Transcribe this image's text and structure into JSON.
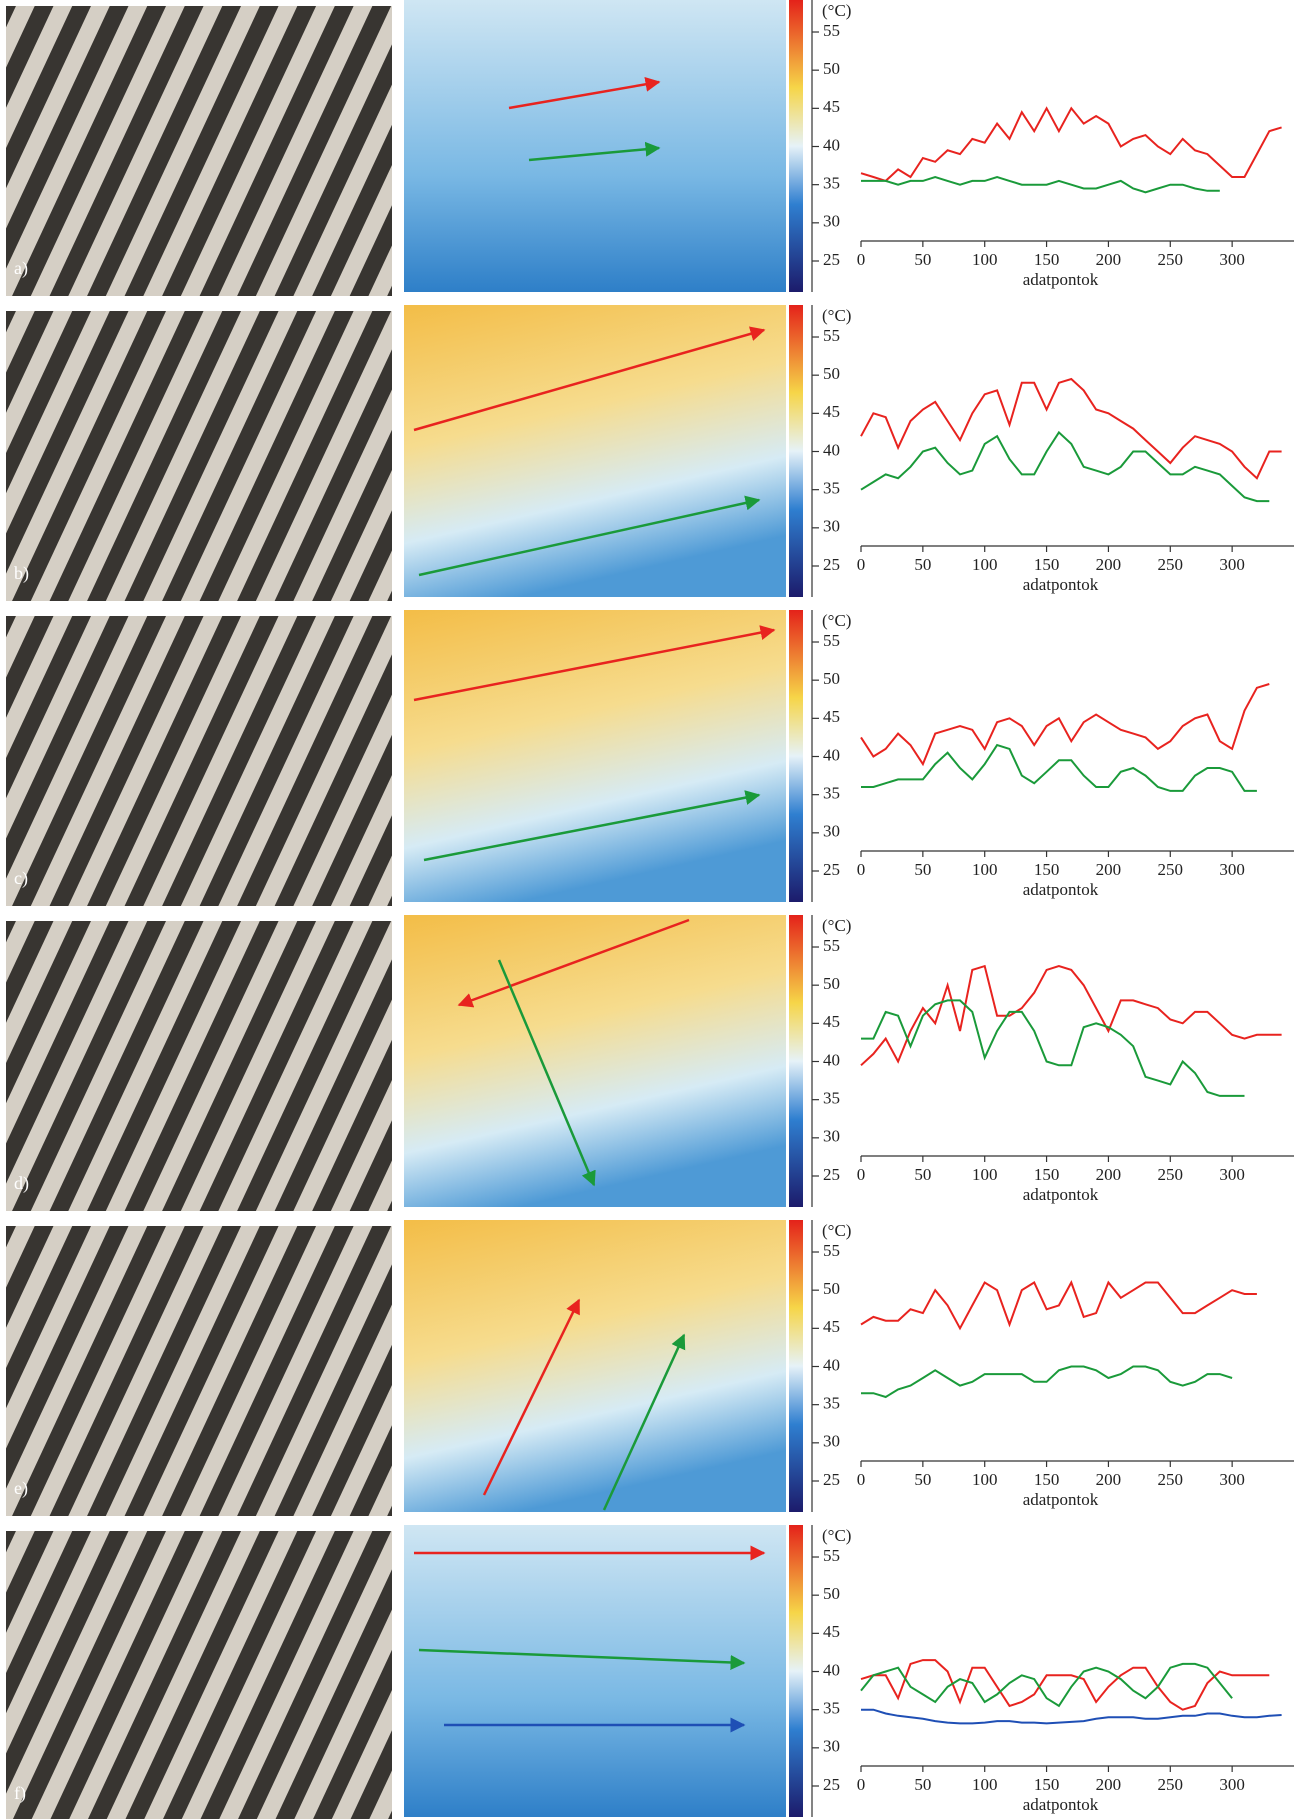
{
  "panel_labels": [
    "a)",
    "b)",
    "c)",
    "d)",
    "e)",
    "f)"
  ],
  "chart_data": [
    {
      "type": "line",
      "y_label": "(°C)",
      "x_label": "adatpontok",
      "xlim": [
        0,
        350
      ],
      "ylim": [
        25,
        58
      ],
      "xticks": [
        0,
        50,
        100,
        150,
        200,
        250,
        300
      ],
      "yticks": [
        25,
        30,
        35,
        40,
        45,
        50,
        55
      ],
      "x": [
        0,
        10,
        20,
        30,
        40,
        50,
        60,
        70,
        80,
        90,
        100,
        110,
        120,
        130,
        140,
        150,
        160,
        170,
        180,
        190,
        200,
        210,
        220,
        230,
        240,
        250,
        260,
        270,
        280,
        290,
        300,
        310,
        320,
        330,
        340
      ],
      "series": [
        {
          "color": "#e8231f",
          "values": [
            36.5,
            36,
            35.5,
            37,
            36,
            38.5,
            38,
            39.5,
            39,
            41,
            40.5,
            43,
            41,
            44.5,
            42,
            45,
            42,
            45,
            43,
            44,
            43,
            40,
            41,
            41.5,
            40,
            39,
            41,
            39.5,
            39,
            37.5,
            36,
            36,
            39,
            42,
            42.5
          ]
        },
        {
          "color": "#1a9a3a",
          "values": [
            35.5,
            35.5,
            35.5,
            35,
            35.5,
            35.5,
            36,
            35.5,
            35,
            35.5,
            35.5,
            36,
            35.5,
            35,
            35,
            35,
            35.5,
            35,
            34.5,
            34.5,
            35,
            35.5,
            34.5,
            34,
            34.5,
            35,
            35,
            34.5,
            34.2,
            34.2,
            null,
            null,
            null,
            null,
            null
          ]
        }
      ]
    },
    {
      "type": "line",
      "y_label": "(°C)",
      "x_label": "adatpontok",
      "xlim": [
        0,
        350
      ],
      "ylim": [
        25,
        58
      ],
      "xticks": [
        0,
        50,
        100,
        150,
        200,
        250,
        300
      ],
      "yticks": [
        25,
        30,
        35,
        40,
        45,
        50,
        55
      ],
      "x": [
        0,
        10,
        20,
        30,
        40,
        50,
        60,
        70,
        80,
        90,
        100,
        110,
        120,
        130,
        140,
        150,
        160,
        170,
        180,
        190,
        200,
        210,
        220,
        230,
        240,
        250,
        260,
        270,
        280,
        290,
        300,
        310,
        320,
        330,
        340
      ],
      "series": [
        {
          "color": "#e8231f",
          "values": [
            42,
            45,
            44.5,
            40.5,
            44,
            45.5,
            46.5,
            44,
            41.5,
            45,
            47.5,
            48,
            43.5,
            49,
            49,
            45.5,
            49,
            49.5,
            48,
            45.5,
            45,
            44,
            43,
            41.5,
            40,
            38.5,
            40.5,
            42,
            41.5,
            41,
            40,
            38,
            36.5,
            40,
            40
          ]
        },
        {
          "color": "#1a9a3a",
          "values": [
            35,
            36,
            37,
            36.5,
            38,
            40,
            40.5,
            38.5,
            37,
            37.5,
            41,
            42,
            39,
            37,
            37,
            40,
            42.5,
            41,
            38,
            37.5,
            37,
            38,
            40,
            40,
            38.5,
            37,
            37,
            38,
            37.5,
            37,
            35.5,
            34,
            33.5,
            33.5,
            null
          ]
        }
      ]
    },
    {
      "type": "line",
      "y_label": "(°C)",
      "x_label": "adatpontok",
      "xlim": [
        0,
        350
      ],
      "ylim": [
        25,
        58
      ],
      "xticks": [
        0,
        50,
        100,
        150,
        200,
        250,
        300
      ],
      "yticks": [
        25,
        30,
        35,
        40,
        45,
        50,
        55
      ],
      "x": [
        0,
        10,
        20,
        30,
        40,
        50,
        60,
        70,
        80,
        90,
        100,
        110,
        120,
        130,
        140,
        150,
        160,
        170,
        180,
        190,
        200,
        210,
        220,
        230,
        240,
        250,
        260,
        270,
        280,
        290,
        300,
        310,
        320,
        330,
        340
      ],
      "series": [
        {
          "color": "#e8231f",
          "values": [
            42.5,
            40,
            41,
            43,
            41.5,
            39,
            43,
            43.5,
            44,
            43.5,
            41,
            44.5,
            45,
            44,
            41.5,
            44,
            45,
            42,
            44.5,
            45.5,
            44.5,
            43.5,
            43,
            42.5,
            41,
            42,
            44,
            45,
            45.5,
            42,
            41,
            46,
            49,
            49.5,
            null
          ]
        },
        {
          "color": "#1a9a3a",
          "values": [
            36,
            36,
            36.5,
            37,
            37,
            37,
            39,
            40.5,
            38.5,
            37,
            39,
            41.5,
            41,
            37.5,
            36.5,
            38,
            39.5,
            39.5,
            37.5,
            36,
            36,
            38,
            38.5,
            37.5,
            36,
            35.5,
            35.5,
            37.5,
            38.5,
            38.5,
            38,
            35.5,
            35.5,
            null,
            null
          ]
        }
      ]
    },
    {
      "type": "line",
      "y_label": "(°C)",
      "x_label": "adatpontok",
      "xlim": [
        0,
        350
      ],
      "ylim": [
        25,
        58
      ],
      "xticks": [
        0,
        50,
        100,
        150,
        200,
        250,
        300
      ],
      "yticks": [
        25,
        30,
        35,
        40,
        45,
        50,
        55
      ],
      "x": [
        0,
        10,
        20,
        30,
        40,
        50,
        60,
        70,
        80,
        90,
        100,
        110,
        120,
        130,
        140,
        150,
        160,
        170,
        180,
        190,
        200,
        210,
        220,
        230,
        240,
        250,
        260,
        270,
        280,
        290,
        300,
        310,
        320,
        330,
        340
      ],
      "series": [
        {
          "color": "#e8231f",
          "values": [
            39.5,
            41,
            43,
            40,
            44,
            47,
            45,
            50,
            44,
            52,
            52.5,
            46,
            46,
            47,
            49,
            52,
            52.5,
            52,
            50,
            47,
            44,
            48,
            48,
            47.5,
            47,
            45.5,
            45,
            46.5,
            46.5,
            45,
            43.5,
            43,
            43.5,
            43.5,
            43.5
          ]
        },
        {
          "color": "#1a9a3a",
          "values": [
            43,
            43,
            46.5,
            46,
            42,
            46,
            47.5,
            48,
            48,
            46.5,
            40.5,
            44,
            46.5,
            46.5,
            44,
            40,
            39.5,
            39.5,
            44.5,
            45,
            44.5,
            43.5,
            42,
            38,
            37.5,
            37,
            40,
            38.5,
            36,
            35.5,
            35.5,
            35.5,
            null,
            null,
            null
          ]
        }
      ]
    },
    {
      "type": "line",
      "y_label": "(°C)",
      "x_label": "adatpontok",
      "xlim": [
        0,
        350
      ],
      "ylim": [
        25,
        58
      ],
      "xticks": [
        0,
        50,
        100,
        150,
        200,
        250,
        300
      ],
      "yticks": [
        25,
        30,
        35,
        40,
        45,
        50,
        55
      ],
      "x": [
        0,
        10,
        20,
        30,
        40,
        50,
        60,
        70,
        80,
        90,
        100,
        110,
        120,
        130,
        140,
        150,
        160,
        170,
        180,
        190,
        200,
        210,
        220,
        230,
        240,
        250,
        260,
        270,
        280,
        290,
        300,
        310,
        320,
        330,
        340
      ],
      "series": [
        {
          "color": "#e8231f",
          "values": [
            45.5,
            46.5,
            46,
            46,
            47.5,
            47,
            50,
            48,
            45,
            48,
            51,
            50,
            45.5,
            50,
            51,
            47.5,
            48,
            51,
            46.5,
            47,
            51,
            49,
            50,
            51,
            51,
            49,
            47,
            47,
            48,
            49,
            50,
            49.5,
            49.5,
            null,
            null
          ]
        },
        {
          "color": "#1a9a3a",
          "values": [
            36.5,
            36.5,
            36,
            37,
            37.5,
            38.5,
            39.5,
            38.5,
            37.5,
            38,
            39,
            39,
            39,
            39,
            38,
            38,
            39.5,
            40,
            40,
            39.5,
            38.5,
            39,
            40,
            40,
            39.5,
            38,
            37.5,
            38,
            39,
            39,
            38.5,
            null,
            null,
            null,
            null
          ]
        }
      ]
    },
    {
      "type": "line",
      "y_label": "(°C)",
      "x_label": "adatpontok",
      "xlim": [
        0,
        350
      ],
      "ylim": [
        25,
        58
      ],
      "xticks": [
        0,
        50,
        100,
        150,
        200,
        250,
        300
      ],
      "yticks": [
        25,
        30,
        35,
        40,
        45,
        50,
        55
      ],
      "x": [
        0,
        10,
        20,
        30,
        40,
        50,
        60,
        70,
        80,
        90,
        100,
        110,
        120,
        130,
        140,
        150,
        160,
        170,
        180,
        190,
        200,
        210,
        220,
        230,
        240,
        250,
        260,
        270,
        280,
        290,
        300,
        310,
        320,
        330,
        340
      ],
      "series": [
        {
          "color": "#e8231f",
          "values": [
            39,
            39.5,
            39.5,
            36.5,
            41,
            41.5,
            41.5,
            40,
            36,
            40.5,
            40.5,
            38,
            35.5,
            36,
            37,
            39.5,
            39.5,
            39.5,
            39,
            36,
            38,
            39.5,
            40.5,
            40.5,
            38,
            36,
            35,
            35.5,
            38.5,
            40,
            39.5,
            39.5,
            39.5,
            39.5,
            null
          ]
        },
        {
          "color": "#1a9a3a",
          "values": [
            37.5,
            39.5,
            40,
            40.5,
            38,
            37,
            36,
            38,
            39,
            38.5,
            36,
            37,
            38.5,
            39.5,
            39,
            36.5,
            35.5,
            38,
            40,
            40.5,
            40,
            39,
            37.5,
            36.5,
            38,
            40.5,
            41,
            41,
            40.5,
            38.5,
            36.5,
            null,
            null,
            null,
            null
          ]
        },
        {
          "color": "#1f4fb5",
          "values": [
            35,
            35,
            34.5,
            34.2,
            34,
            33.8,
            33.5,
            33.3,
            33.2,
            33.2,
            33.3,
            33.5,
            33.5,
            33.3,
            33.3,
            33.2,
            33.3,
            33.4,
            33.5,
            33.8,
            34,
            34,
            34,
            33.8,
            33.8,
            34,
            34.2,
            34.2,
            34.5,
            34.5,
            34.2,
            34,
            34,
            34.2,
            34.3
          ]
        }
      ]
    }
  ]
}
